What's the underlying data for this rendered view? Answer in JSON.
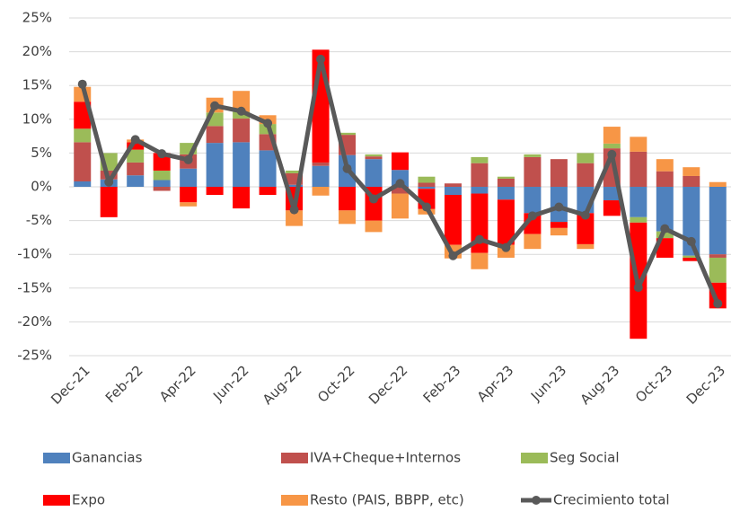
{
  "chart_data": {
    "type": "stacked-bar-line",
    "categories": [
      "Dec-21",
      null,
      "Feb-22",
      null,
      "Apr-22",
      null,
      "Jun-22",
      null,
      "Aug-22",
      null,
      "Oct-22",
      null,
      "Dec-22",
      null,
      "Feb-23",
      null,
      "Apr-23",
      null,
      "Jun-23",
      null,
      "Aug-23",
      null,
      "Oct-23",
      null,
      "Dec-23"
    ],
    "series": [
      {
        "name": "Ganancias",
        "color": "#4f81bd",
        "type": "bar",
        "values": [
          0.8,
          1.1,
          1.7,
          1.0,
          2.7,
          6.5,
          6.6,
          5.4,
          0.3,
          3.1,
          4.7,
          4.1,
          2.5,
          -0.3,
          -1.2,
          -1.0,
          -1.9,
          -3.9,
          -5.2,
          -3.9,
          -2.0,
          -4.5,
          -6.6,
          -10.2,
          -10.0
        ]
      },
      {
        "name": "IVA+Cheque+Internos",
        "color": "#c0504d",
        "type": "bar",
        "values": [
          5.8,
          1.3,
          1.9,
          -0.6,
          2.1,
          2.5,
          3.5,
          2.4,
          1.7,
          0.5,
          3.0,
          0.4,
          -1.0,
          0.6,
          0.5,
          3.5,
          1.2,
          4.4,
          4.1,
          3.5,
          5.7,
          5.2,
          2.3,
          1.6,
          -0.5
        ]
      },
      {
        "name": "Seg Social",
        "color": "#9bbb59",
        "type": "bar",
        "values": [
          2.0,
          2.6,
          1.9,
          1.4,
          1.7,
          2.0,
          1.0,
          1.5,
          0.4,
          0,
          0.3,
          0.3,
          0,
          0.9,
          0,
          0.9,
          0.3,
          0.4,
          0,
          1.5,
          0.7,
          -0.8,
          -1.0,
          -0.3,
          -3.7
        ]
      },
      {
        "name": "Expo",
        "color": "#ff0000",
        "type": "bar",
        "values": [
          4.0,
          -4.5,
          1.1,
          2.6,
          -2.3,
          -1.2,
          -3.2,
          -1.2,
          -3.5,
          16.7,
          -3.5,
          -5.0,
          2.6,
          -3.0,
          -7.4,
          -8.8,
          -6.7,
          -3.1,
          -0.9,
          -4.6,
          -2.3,
          -17.2,
          -2.9,
          -0.5,
          -3.8
        ]
      },
      {
        "name": "Resto (PAIS, BBPP, etc)",
        "color": "#f79646",
        "type": "bar",
        "values": [
          2.2,
          0,
          0.4,
          0,
          -0.6,
          2.2,
          3.1,
          1.3,
          -2.3,
          -1.3,
          -2.0,
          -1.7,
          -3.7,
          -0.8,
          -2.0,
          -2.4,
          -1.9,
          -2.2,
          -1.1,
          -0.7,
          2.5,
          2.2,
          1.8,
          1.3,
          0.7
        ]
      },
      {
        "name": "Crecimiento total",
        "color": "#595959",
        "type": "line",
        "values": [
          15.2,
          0.7,
          7.0,
          4.9,
          4.0,
          12.0,
          11.2,
          9.4,
          -3.4,
          18.9,
          2.7,
          -1.8,
          0.5,
          -3.0,
          -10.2,
          -7.8,
          -9.0,
          -4.3,
          -3.0,
          -4.2,
          4.8,
          -14.9,
          -6.2,
          -8.1,
          -17.3
        ]
      }
    ],
    "ylim": [
      -25,
      25
    ],
    "yticks": [
      {
        "value": -25,
        "label": "-25%"
      },
      {
        "value": -20,
        "label": "-20%"
      },
      {
        "value": -15,
        "label": "-15%"
      },
      {
        "value": -10,
        "label": "-10%"
      },
      {
        "value": -5,
        "label": "-5%"
      },
      {
        "value": 0,
        "label": "0%"
      },
      {
        "value": 5,
        "label": "5%"
      },
      {
        "value": 10,
        "label": "10%"
      },
      {
        "value": 15,
        "label": "15%"
      },
      {
        "value": 20,
        "label": "20%"
      },
      {
        "value": 25,
        "label": "25%"
      }
    ],
    "grid": true,
    "legend": "bottom"
  }
}
